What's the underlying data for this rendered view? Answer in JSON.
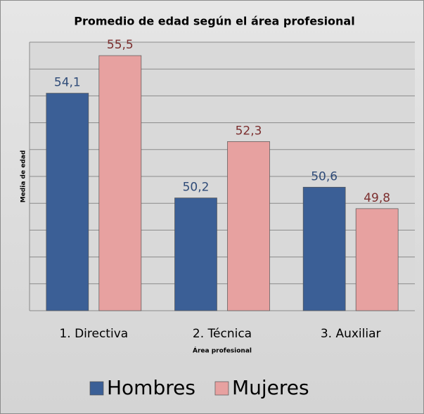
{
  "chart_data": {
    "type": "bar",
    "title": "Promedio de edad según el área profesional",
    "x_label": "Área profesional",
    "y_label": "Media de edad",
    "categories": [
      "1. Directiva",
      "2. Técnica",
      "3. Auxiliar"
    ],
    "series": [
      {
        "name": "Hombres",
        "color": "#3b5f96",
        "label_color": "#2f4b78",
        "values": [
          54.1,
          50.2,
          50.6
        ],
        "value_labels": [
          "54,1",
          "50,2",
          "50,6"
        ]
      },
      {
        "name": "Mujeres",
        "color": "#e7a1a0",
        "label_color": "#7b2e2e",
        "values": [
          55.5,
          52.3,
          49.8
        ],
        "value_labels": [
          "55,5",
          "52,3",
          "49,8"
        ]
      }
    ],
    "ylim": [
      46,
      56
    ],
    "yticks": [
      46,
      47,
      48,
      49,
      50,
      51,
      52,
      53,
      54,
      55,
      56
    ],
    "grid": true,
    "legend": "bottom"
  }
}
